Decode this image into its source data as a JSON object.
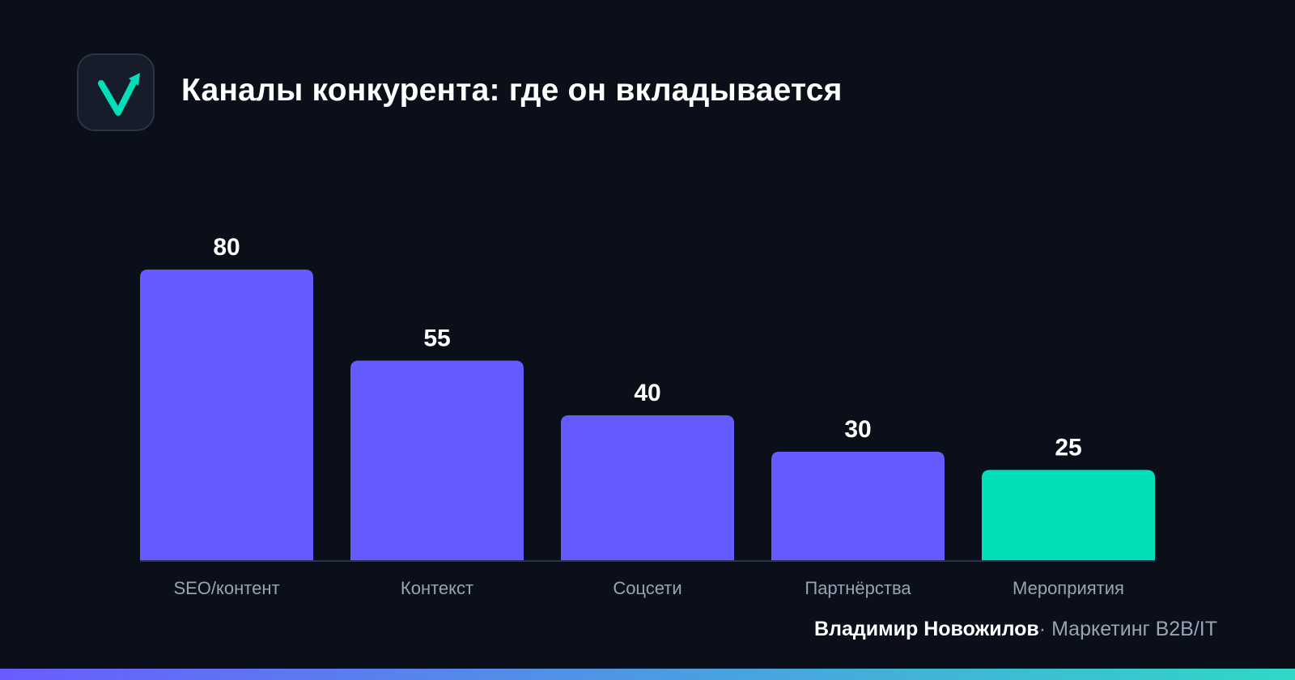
{
  "header": {
    "title": "Каналы конкурента: где он вкладывается",
    "logo_icon": "checkmark-arrow-icon"
  },
  "colors": {
    "background": "#0b0f19",
    "bar_primary": "#655cff",
    "bar_highlight": "#00dfb7",
    "axis_line": "#2a3050",
    "label_muted": "#9aa2b4"
  },
  "chart_data": {
    "type": "bar",
    "categories": [
      "SEO/контент",
      "Контекст",
      "Соцсети",
      "Партнёрства",
      "Мероприятия"
    ],
    "values": [
      80,
      55,
      40,
      30,
      25
    ],
    "highlight_index": 4,
    "title": "",
    "xlabel": "",
    "ylabel": "",
    "ylim": [
      0,
      80
    ],
    "grid": false,
    "value_labels": true
  },
  "footer": {
    "author": "Владимир Новожилов",
    "separator": "·",
    "role": "Маркетинг B2B/IT"
  }
}
